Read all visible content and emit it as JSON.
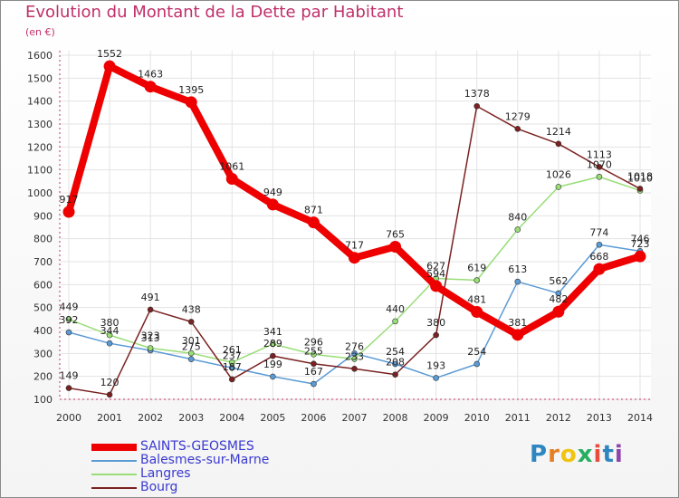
{
  "title": "Evolution du Montant de la Dette par Habitant",
  "subtitle": "(en €)",
  "brand": {
    "text": "Proxiti",
    "letters": [
      "P",
      "r",
      "o",
      "x",
      "i",
      "t",
      "i"
    ],
    "colors": [
      "#2e86c1",
      "#e67e22",
      "#f1c40f",
      "#27ae60",
      "#e74c3c",
      "#2e86c1",
      "#8e44ad"
    ]
  },
  "chart_data": {
    "type": "line",
    "title": "Evolution du Montant de la Dette par Habitant",
    "subtitle": "(en €)",
    "xlabel": "",
    "ylabel": "",
    "x": [
      "2000",
      "2001",
      "2002",
      "2003",
      "2004",
      "2005",
      "2006",
      "2007",
      "2008",
      "2009",
      "2010",
      "2011",
      "2012",
      "2013",
      "2014"
    ],
    "ylim": [
      100,
      1600
    ],
    "yticks": [
      100,
      200,
      300,
      400,
      500,
      600,
      700,
      800,
      900,
      1000,
      1100,
      1200,
      1300,
      1400,
      1500,
      1600
    ],
    "grid": true,
    "legend_position": "bottom-left",
    "series": [
      {
        "name": "SAINTS-GEOSMES",
        "color": "#ee0000",
        "bold": true,
        "values": [
          917,
          1552,
          1463,
          1395,
          1061,
          949,
          871,
          717,
          765,
          594,
          481,
          381,
          482,
          668,
          723
        ],
        "labels": [
          "917",
          "1552",
          "1463",
          "1395",
          "1061",
          "949",
          "871",
          "717",
          "765",
          "594",
          "481",
          "381",
          "482",
          "668",
          "723"
        ]
      },
      {
        "name": "Balesmes-sur-Marne",
        "color": "#5b9bd5",
        "bold": false,
        "values": [
          392,
          344,
          313,
          275,
          237,
          199,
          167,
          300,
          254,
          193,
          254,
          613,
          562,
          774,
          746
        ],
        "labels": [
          "392",
          "344",
          "313",
          "275",
          "237",
          "199",
          "167",
          "",
          "254",
          "193",
          "254",
          "613",
          "562",
          "774",
          "746"
        ]
      },
      {
        "name": "Langres",
        "color": "#99dd77",
        "bold": false,
        "values": [
          449,
          380,
          323,
          301,
          261,
          341,
          296,
          276,
          440,
          627,
          619,
          840,
          1026,
          1070,
          1010
        ],
        "labels": [
          "449",
          "380",
          "323",
          "301",
          "261",
          "341",
          "296",
          "276",
          "440",
          "627",
          "619",
          "840",
          "1026",
          "1070",
          "1010"
        ]
      },
      {
        "name": "Bourg",
        "color": "#7b2121",
        "bold": false,
        "values": [
          149,
          120,
          491,
          438,
          187,
          289,
          255,
          233,
          208,
          380,
          1378,
          1279,
          1214,
          1113,
          1018
        ],
        "labels": [
          "149",
          "120",
          "491",
          "438",
          "187",
          "289",
          "255",
          "233",
          "208",
          "380",
          "1378",
          "1279",
          "1214",
          "1113",
          "1018"
        ]
      }
    ]
  }
}
